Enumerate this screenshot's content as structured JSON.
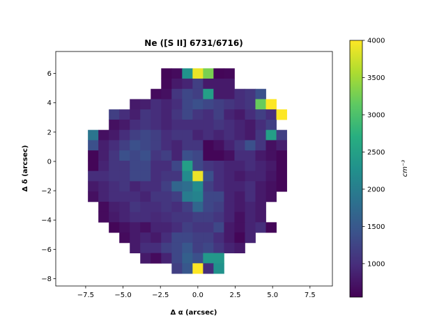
{
  "chart_data": {
    "type": "heatmap",
    "title": "Ne ([S II] 6731/6716)",
    "xlabel": "Δ α (arcsec)",
    "ylabel": "Δ δ (arcsec)",
    "xlim": [
      -9.5,
      9.0
    ],
    "ylim": [
      -8.5,
      7.5
    ],
    "xticks": [
      -7.5,
      -5.0,
      -2.5,
      0.0,
      2.5,
      5.0,
      7.5
    ],
    "xtick_labels": [
      "−7.5",
      "−5.0",
      "−2.5",
      "0.0",
      "2.5",
      "5.0",
      "7.5"
    ],
    "yticks": [
      -8,
      -6,
      -4,
      -2,
      0,
      2,
      4,
      6
    ],
    "ytick_labels": [
      "−8",
      "−6",
      "−4",
      "−2",
      "0",
      "2",
      "4",
      "6"
    ],
    "colormap": "viridis",
    "colorbar": {
      "label": "cm⁻³",
      "vmin": 550,
      "vmax": 4000,
      "ticks": [
        1000,
        1500,
        2000,
        2500,
        3000,
        3500,
        4000
      ],
      "tick_labels": [
        "1000",
        "1500",
        "2000",
        "2500",
        "3000",
        "3500",
        "4000"
      ]
    },
    "pixel_size_arcsec": 0.7,
    "x_centers": [
      -7.0,
      -6.3,
      -5.6,
      -4.9,
      -4.2,
      -3.5,
      -2.8,
      -2.1,
      -1.4,
      -0.7,
      0.0,
      0.7,
      1.4,
      2.1,
      2.8,
      3.5,
      4.2,
      4.9,
      5.6
    ],
    "y_centers": [
      6.0,
      5.3,
      4.6,
      3.9,
      3.2,
      2.5,
      1.8,
      1.1,
      0.4,
      -0.3,
      -1.0,
      -1.7,
      -2.4,
      -3.1,
      -3.8,
      -4.5,
      -5.2,
      -5.9,
      -6.6,
      -7.3
    ],
    "grid_note": "rows top to bottom (y_centers), columns left to right (x_centers); null = no data",
    "values": [
      [
        null,
        null,
        null,
        null,
        null,
        null,
        null,
        600,
        650,
        2300,
        3900,
        3300,
        600,
        620,
        null,
        null,
        null,
        null,
        null
      ],
      [
        null,
        null,
        null,
        null,
        null,
        null,
        null,
        620,
        800,
        900,
        1200,
        800,
        800,
        800,
        null,
        null,
        null,
        null,
        null
      ],
      [
        null,
        null,
        null,
        null,
        null,
        null,
        650,
        700,
        1100,
        1300,
        1200,
        2500,
        800,
        800,
        1000,
        1100,
        1400,
        null,
        null
      ],
      [
        null,
        null,
        null,
        null,
        800,
        850,
        1000,
        900,
        1000,
        1300,
        1400,
        1300,
        1200,
        1100,
        1000,
        1100,
        3200,
        4000,
        null
      ],
      [
        null,
        null,
        1200,
        1000,
        850,
        1100,
        1000,
        900,
        1100,
        1300,
        1100,
        1000,
        1200,
        900,
        800,
        1000,
        1200,
        1000,
        4000
      ],
      [
        null,
        null,
        700,
        800,
        1000,
        1100,
        1000,
        900,
        1000,
        1000,
        1000,
        1000,
        1100,
        1000,
        900,
        800,
        1000,
        1200,
        null
      ],
      [
        1900,
        700,
        800,
        1000,
        1200,
        1300,
        1200,
        1000,
        1100,
        1100,
        900,
        1000,
        900,
        1000,
        900,
        800,
        1100,
        2500,
        1200
      ],
      [
        1400,
        850,
        1000,
        1200,
        1400,
        1300,
        1200,
        1000,
        900,
        1100,
        1100,
        600,
        700,
        900,
        1100,
        1400,
        1100,
        700,
        850
      ],
      [
        600,
        850,
        1100,
        1400,
        1300,
        1400,
        1100,
        1200,
        900,
        1400,
        1300,
        600,
        600,
        700,
        1000,
        1000,
        800,
        700,
        600
      ],
      [
        600,
        900,
        1100,
        1100,
        1300,
        1300,
        1000,
        1000,
        1300,
        2500,
        1300,
        1100,
        1000,
        900,
        900,
        1000,
        900,
        800,
        600
      ],
      [
        1000,
        1000,
        1100,
        1100,
        1300,
        1300,
        1000,
        1100,
        1100,
        2200,
        3900,
        1400,
        1000,
        900,
        800,
        900,
        900,
        750,
        600
      ],
      [
        800,
        900,
        1000,
        1100,
        900,
        1000,
        1000,
        1200,
        1700,
        1800,
        2200,
        1200,
        1000,
        900,
        900,
        1000,
        800,
        700,
        600
      ],
      [
        700,
        900,
        1000,
        1000,
        1000,
        900,
        1100,
        1100,
        1200,
        2000,
        2100,
        1300,
        1300,
        900,
        800,
        1000,
        800,
        700,
        null
      ],
      [
        null,
        650,
        850,
        900,
        1100,
        1000,
        1000,
        1100,
        1000,
        1200,
        1700,
        1300,
        1200,
        900,
        800,
        900,
        800,
        null,
        null
      ],
      [
        null,
        650,
        800,
        900,
        1000,
        1000,
        950,
        1000,
        1100,
        1100,
        1200,
        1200,
        1100,
        900,
        700,
        900,
        800,
        null,
        null
      ],
      [
        null,
        null,
        600,
        700,
        800,
        700,
        900,
        900,
        1000,
        1200,
        1100,
        1100,
        1300,
        800,
        700,
        900,
        1000,
        600,
        null
      ],
      [
        null,
        null,
        null,
        650,
        800,
        900,
        800,
        1000,
        1300,
        1300,
        1200,
        1200,
        1000,
        800,
        600,
        900,
        null,
        null,
        null
      ],
      [
        null,
        null,
        null,
        null,
        800,
        1000,
        1000,
        1200,
        1300,
        1500,
        1200,
        1300,
        1100,
        900,
        800,
        null,
        null,
        null,
        null
      ],
      [
        null,
        null,
        null,
        null,
        null,
        800,
        650,
        900,
        1300,
        1600,
        1400,
        2400,
        2400,
        null,
        null,
        null,
        null,
        null,
        null
      ],
      [
        null,
        null,
        null,
        null,
        null,
        null,
        null,
        null,
        1200,
        1500,
        4000,
        1000,
        2300,
        null,
        null,
        null,
        null,
        null,
        null
      ]
    ]
  }
}
